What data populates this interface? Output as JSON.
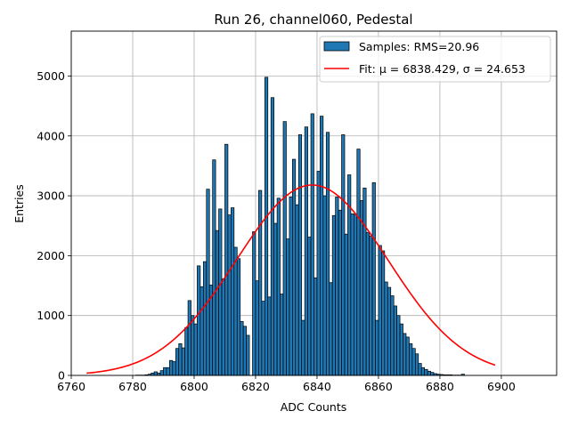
{
  "chart_data": {
    "type": "bar",
    "title": "Run 26, channel060, Pedestal",
    "xlabel": "ADC Counts",
    "ylabel": "Entries",
    "xlim": [
      6760,
      6918
    ],
    "ylim": [
      0,
      5750
    ],
    "xticks": [
      6760,
      6780,
      6800,
      6820,
      6840,
      6860,
      6880,
      6900
    ],
    "yticks": [
      0,
      1000,
      2000,
      3000,
      4000,
      5000
    ],
    "grid": true,
    "legend_position": "top-right",
    "legend": [
      {
        "label": "Samples: RMS=20.96",
        "kind": "patch"
      },
      {
        "label": "Fit: μ = 6838.429, σ = 24.653",
        "kind": "line"
      }
    ],
    "series": [
      {
        "kind": "histogram",
        "bin_width": 1,
        "color": "#1f77b4",
        "edgecolor": "#000000",
        "bins": [
          [
            6781,
            5
          ],
          [
            6782,
            5
          ],
          [
            6783,
            5
          ],
          [
            6784,
            10
          ],
          [
            6785,
            20
          ],
          [
            6786,
            40
          ],
          [
            6787,
            60
          ],
          [
            6788,
            40
          ],
          [
            6789,
            80
          ],
          [
            6790,
            130
          ],
          [
            6791,
            130
          ],
          [
            6792,
            250
          ],
          [
            6793,
            230
          ],
          [
            6794,
            450
          ],
          [
            6795,
            530
          ],
          [
            6796,
            460
          ],
          [
            6797,
            800
          ],
          [
            6798,
            1250
          ],
          [
            6799,
            1000
          ],
          [
            6800,
            860
          ],
          [
            6801,
            1830
          ],
          [
            6802,
            1480
          ],
          [
            6803,
            1900
          ],
          [
            6804,
            3110
          ],
          [
            6805,
            1510
          ],
          [
            6806,
            3600
          ],
          [
            6807,
            2420
          ],
          [
            6808,
            2780
          ],
          [
            6809,
            1610
          ],
          [
            6810,
            3860
          ],
          [
            6811,
            2680
          ],
          [
            6812,
            2800
          ],
          [
            6813,
            2140
          ],
          [
            6814,
            1950
          ],
          [
            6815,
            900
          ],
          [
            6816,
            820
          ],
          [
            6817,
            670
          ],
          [
            6818,
            0
          ],
          [
            6819,
            2400
          ],
          [
            6820,
            1580
          ],
          [
            6821,
            3090
          ],
          [
            6822,
            1240
          ],
          [
            6823,
            4980
          ],
          [
            6824,
            1310
          ],
          [
            6825,
            4640
          ],
          [
            6826,
            2540
          ],
          [
            6827,
            2960
          ],
          [
            6828,
            1360
          ],
          [
            6829,
            4240
          ],
          [
            6830,
            2280
          ],
          [
            6831,
            2980
          ],
          [
            6832,
            3610
          ],
          [
            6833,
            2850
          ],
          [
            6834,
            4020
          ],
          [
            6835,
            920
          ],
          [
            6836,
            4150
          ],
          [
            6837,
            2310
          ],
          [
            6838,
            4370
          ],
          [
            6839,
            1630
          ],
          [
            6840,
            3410
          ],
          [
            6841,
            4330
          ],
          [
            6842,
            3000
          ],
          [
            6843,
            4060
          ],
          [
            6844,
            1550
          ],
          [
            6845,
            2670
          ],
          [
            6846,
            2980
          ],
          [
            6847,
            2760
          ],
          [
            6848,
            4020
          ],
          [
            6849,
            2360
          ],
          [
            6850,
            3350
          ],
          [
            6851,
            2700
          ],
          [
            6852,
            2690
          ],
          [
            6853,
            3780
          ],
          [
            6854,
            2920
          ],
          [
            6855,
            3130
          ],
          [
            6856,
            2390
          ],
          [
            6857,
            2330
          ],
          [
            6858,
            3220
          ],
          [
            6859,
            920
          ],
          [
            6860,
            2170
          ],
          [
            6861,
            2080
          ],
          [
            6862,
            1560
          ],
          [
            6863,
            1470
          ],
          [
            6864,
            1330
          ],
          [
            6865,
            1160
          ],
          [
            6866,
            1000
          ],
          [
            6867,
            860
          ],
          [
            6868,
            700
          ],
          [
            6869,
            640
          ],
          [
            6870,
            530
          ],
          [
            6871,
            450
          ],
          [
            6872,
            360
          ],
          [
            6873,
            200
          ],
          [
            6874,
            130
          ],
          [
            6875,
            100
          ],
          [
            6876,
            70
          ],
          [
            6877,
            50
          ],
          [
            6878,
            30
          ],
          [
            6879,
            20
          ],
          [
            6880,
            15
          ],
          [
            6881,
            10
          ],
          [
            6882,
            10
          ],
          [
            6883,
            10
          ],
          [
            6884,
            5
          ],
          [
            6885,
            5
          ],
          [
            6886,
            5
          ],
          [
            6887,
            20
          ]
        ]
      },
      {
        "kind": "gaussian_fit",
        "color": "#ff0000",
        "mu": 6838.429,
        "sigma": 24.653,
        "amplitude": 3180,
        "x_range": [
          6765,
          6898
        ]
      }
    ]
  }
}
